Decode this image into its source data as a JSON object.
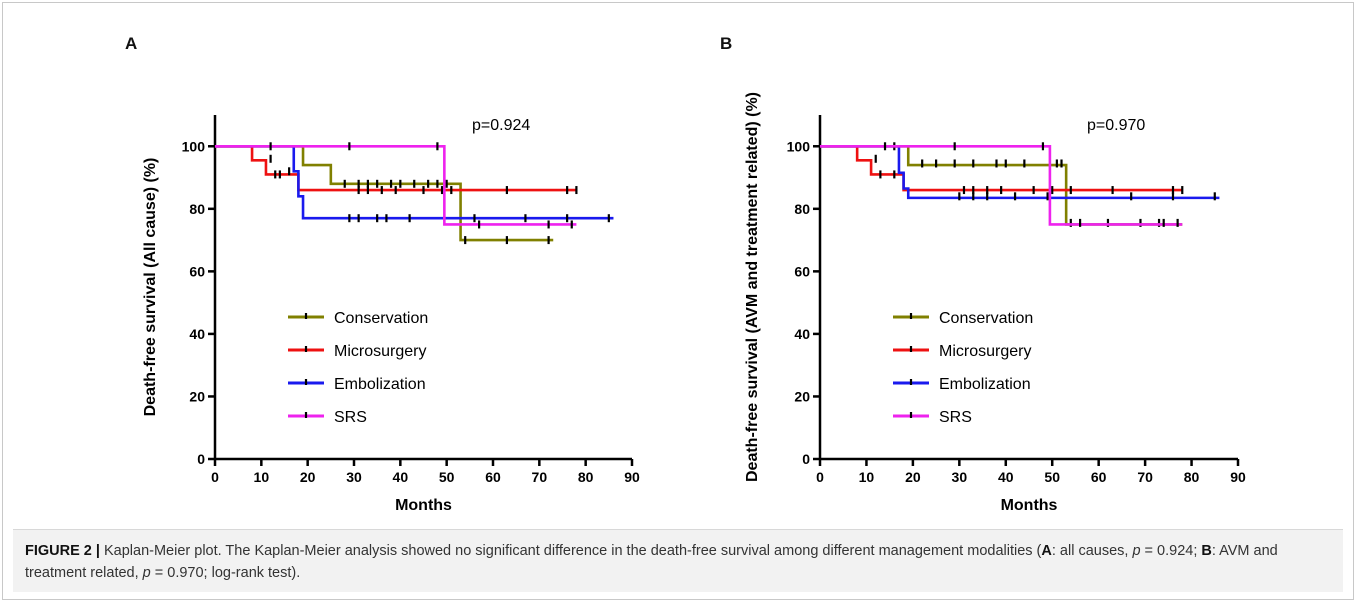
{
  "figure": {
    "caption": {
      "label": "FIGURE 2 |",
      "text1": " Kaplan-Meier plot. The Kaplan-Meier analysis showed no significant difference in the death-free survival among different management modalities (",
      "a_key": "A",
      "text2": ": all causes, ",
      "p_sym1": "p",
      "p_val1": " = 0.924; ",
      "b_key": "B",
      "text3": ": AVM and treatment related, ",
      "p_sym2": "p",
      "p_val2": " = 0.970; log-rank test)."
    }
  },
  "chart_data": [
    {
      "type": "line",
      "step": true,
      "panel_label": "A",
      "annotation": "p=0.924",
      "xlabel": "Months",
      "ylabel": "Death-free survival (All cause) (%)",
      "xlim": [
        0,
        90
      ],
      "ylim": [
        0,
        110
      ],
      "xticks": [
        0,
        10,
        20,
        30,
        40,
        50,
        60,
        70,
        80,
        90
      ],
      "yticks": [
        0,
        20,
        40,
        60,
        80,
        100
      ],
      "grid": false,
      "legend_position": "lower-center",
      "series": [
        {
          "name": "Conservation",
          "color": "#808000",
          "steps": [
            [
              0,
              100
            ],
            [
              19,
              94
            ],
            [
              25,
              88
            ],
            [
              52,
              88
            ],
            [
              53,
              70
            ],
            [
              73,
              70
            ]
          ],
          "censored": [
            [
              28,
              88
            ],
            [
              31,
              88
            ],
            [
              33,
              88
            ],
            [
              35,
              88
            ],
            [
              38,
              88
            ],
            [
              40,
              88
            ],
            [
              43,
              88
            ],
            [
              46,
              88
            ],
            [
              48,
              88
            ],
            [
              50,
              88
            ],
            [
              54,
              70
            ],
            [
              63,
              70
            ],
            [
              72,
              70
            ]
          ]
        },
        {
          "name": "Microsurgery",
          "color": "#ee1111",
          "steps": [
            [
              0,
              100
            ],
            [
              8,
              95.5
            ],
            [
              11,
              91
            ],
            [
              18,
              86
            ],
            [
              78,
              86
            ]
          ],
          "censored": [
            [
              12,
              96
            ],
            [
              13,
              91
            ],
            [
              14,
              91
            ],
            [
              31,
              86
            ],
            [
              33,
              86
            ],
            [
              36,
              86
            ],
            [
              39,
              86
            ],
            [
              45,
              86
            ],
            [
              49,
              86
            ],
            [
              51,
              86
            ],
            [
              63,
              86
            ],
            [
              76,
              86
            ],
            [
              78,
              86
            ]
          ]
        },
        {
          "name": "Embolization",
          "color": "#1a1aee",
          "steps": [
            [
              0,
              100
            ],
            [
              17,
              92
            ],
            [
              18,
              84
            ],
            [
              19,
              77
            ],
            [
              86,
              77
            ]
          ],
          "censored": [
            [
              16,
              92
            ],
            [
              29,
              77
            ],
            [
              31,
              77
            ],
            [
              35,
              77
            ],
            [
              37,
              77
            ],
            [
              42,
              77
            ],
            [
              56,
              77
            ],
            [
              67,
              77
            ],
            [
              76,
              77
            ],
            [
              85,
              77
            ]
          ]
        },
        {
          "name": "SRS",
          "color": "#ee22ee",
          "steps": [
            [
              0,
              100
            ],
            [
              49,
              100
            ],
            [
              49.5,
              75
            ],
            [
              78,
              75
            ]
          ],
          "censored": [
            [
              12,
              100
            ],
            [
              29,
              100
            ],
            [
              48,
              100
            ],
            [
              57,
              75
            ],
            [
              72,
              75
            ],
            [
              77,
              75
            ]
          ]
        }
      ]
    },
    {
      "type": "line",
      "step": true,
      "panel_label": "B",
      "annotation": "p=0.970",
      "xlabel": "Months",
      "ylabel": "Death-free survival (AVM and treatment related) (%)",
      "xlim": [
        0,
        90
      ],
      "ylim": [
        0,
        110
      ],
      "xticks": [
        0,
        10,
        20,
        30,
        40,
        50,
        60,
        70,
        80,
        90
      ],
      "yticks": [
        0,
        20,
        40,
        60,
        80,
        100
      ],
      "grid": false,
      "legend_position": "lower-center",
      "series": [
        {
          "name": "Conservation",
          "color": "#808000",
          "steps": [
            [
              0,
              100
            ],
            [
              19,
              94
            ],
            [
              52,
              94
            ],
            [
              53,
              75
            ],
            [
              78,
              75
            ]
          ],
          "censored": [
            [
              22,
              94.5
            ],
            [
              25,
              94.5
            ],
            [
              29,
              94.5
            ],
            [
              33,
              94.5
            ],
            [
              38,
              94.5
            ],
            [
              40,
              94.5
            ],
            [
              44,
              94.5
            ],
            [
              51,
              94.5
            ],
            [
              52,
              94.5
            ],
            [
              54,
              75.5
            ],
            [
              62,
              75.5
            ],
            [
              69,
              75.5
            ],
            [
              73,
              75.5
            ]
          ]
        },
        {
          "name": "Microsurgery",
          "color": "#ee1111",
          "steps": [
            [
              0,
              100
            ],
            [
              8,
              95.5
            ],
            [
              11,
              91
            ],
            [
              18,
              86
            ],
            [
              78,
              86
            ]
          ],
          "censored": [
            [
              12,
              96
            ],
            [
              13,
              91
            ],
            [
              16,
              91
            ],
            [
              31,
              86
            ],
            [
              33,
              86
            ],
            [
              36,
              86
            ],
            [
              39,
              86
            ],
            [
              46,
              86
            ],
            [
              50,
              86
            ],
            [
              54,
              86
            ],
            [
              63,
              86
            ],
            [
              76,
              86
            ],
            [
              78,
              86
            ]
          ]
        },
        {
          "name": "Embolization",
          "color": "#1a1aee",
          "steps": [
            [
              0,
              100
            ],
            [
              17,
              91.5
            ],
            [
              18,
              86.5
            ],
            [
              19,
              83.5
            ],
            [
              86,
              83.5
            ]
          ],
          "censored": [
            [
              16,
              100
            ],
            [
              30,
              84
            ],
            [
              33,
              84
            ],
            [
              36,
              84
            ],
            [
              42,
              84
            ],
            [
              49,
              84
            ],
            [
              67,
              84
            ],
            [
              76,
              84
            ],
            [
              85,
              84
            ]
          ]
        },
        {
          "name": "SRS",
          "color": "#ee22ee",
          "steps": [
            [
              0,
              100
            ],
            [
              49,
              100
            ],
            [
              49.5,
              75
            ],
            [
              78,
              75
            ]
          ],
          "censored": [
            [
              14,
              100
            ],
            [
              29,
              100
            ],
            [
              48,
              100
            ],
            [
              56,
              75.5
            ],
            [
              74,
              75.5
            ],
            [
              77,
              75.5
            ]
          ]
        }
      ]
    }
  ]
}
